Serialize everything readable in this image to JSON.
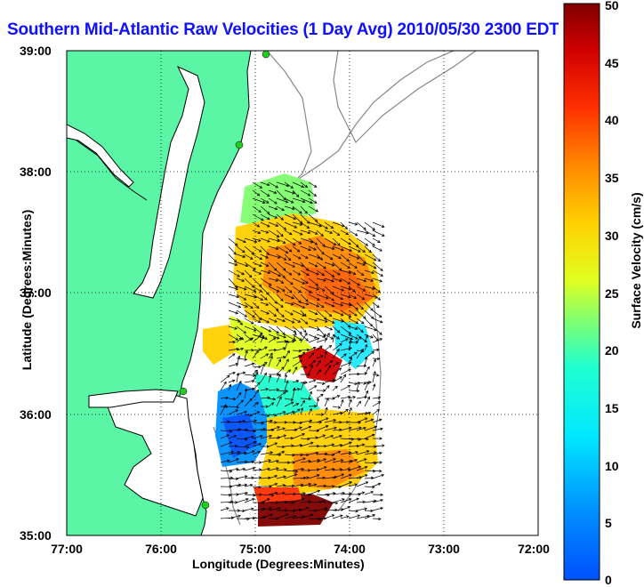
{
  "title": "Southern Mid-Atlantic Raw Velocities (1 Day Avg) 2010/05/30 2300 EDT",
  "map": {
    "xlabel": "Longitude (Degrees:Minutes)",
    "ylabel": "Latitude (Degrees:Minutes)",
    "x_ticks": [
      "77:00",
      "76:00",
      "75:00",
      "74:00",
      "73:00",
      "72:00"
    ],
    "y_ticks": [
      "39:00",
      "38:00",
      "37:00",
      "36:00",
      "35:00"
    ],
    "lon_range": [
      -77,
      -72
    ],
    "lat_range": [
      35,
      39
    ],
    "grid": true,
    "land_color": "#5af5a5"
  },
  "colorbar": {
    "label": "Surface Velocity (cm/s)",
    "ticks": [
      "50",
      "45",
      "40",
      "35",
      "30",
      "25",
      "20",
      "15",
      "10",
      "5",
      "0"
    ],
    "range": [
      0,
      50
    ],
    "colormap": "jet"
  }
}
